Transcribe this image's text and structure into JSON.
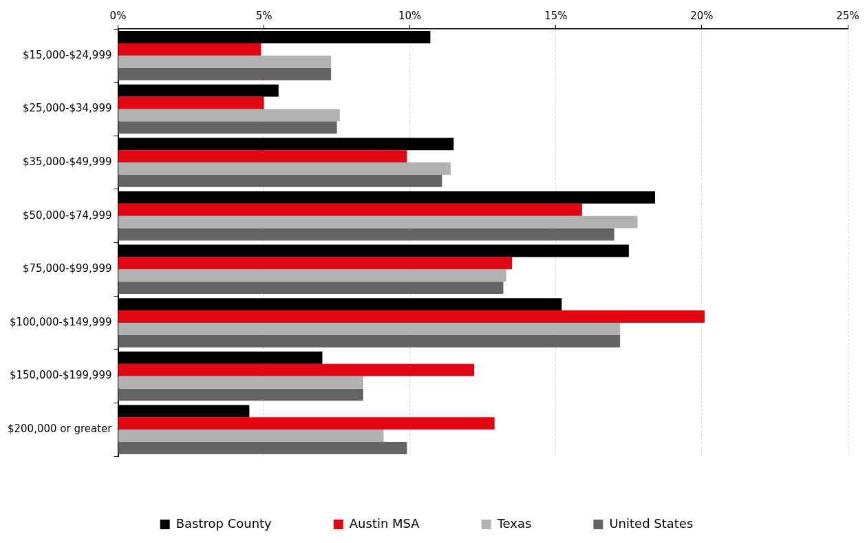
{
  "chart_data": {
    "type": "bar",
    "orientation": "horizontal",
    "categories": [
      "$15,000-$24,999",
      "$25,000-$34,999",
      "$35,000-$49,999",
      "$50,000-$74,999",
      "$75,000-$99,999",
      "$100,000-$149,999",
      "$150,000-$199,999",
      "$200,000 or greater"
    ],
    "series": [
      {
        "name": "Bastrop County",
        "color": "#000000",
        "values": [
          10.7,
          5.5,
          11.5,
          18.4,
          17.5,
          15.2,
          7.0,
          4.5
        ]
      },
      {
        "name": "Austin MSA",
        "color": "#e30613",
        "values": [
          4.9,
          5.0,
          9.9,
          15.9,
          13.5,
          20.1,
          12.2,
          12.9
        ]
      },
      {
        "name": "Texas",
        "color": "#b2b2b2",
        "values": [
          7.3,
          7.6,
          11.4,
          17.8,
          13.3,
          17.2,
          8.4,
          9.1
        ]
      },
      {
        "name": "United States",
        "color": "#636466",
        "values": [
          7.3,
          7.5,
          11.1,
          17.0,
          13.2,
          17.2,
          8.4,
          9.9
        ]
      }
    ],
    "xlim": [
      0,
      25
    ],
    "xticks": [
      {
        "value": 0,
        "label": "0%"
      },
      {
        "value": 5,
        "label": "5%"
      },
      {
        "value": 10,
        "label": "10%"
      },
      {
        "value": 15,
        "label": "15%"
      },
      {
        "value": 20,
        "label": "20%"
      },
      {
        "value": 25,
        "label": "25%"
      }
    ],
    "grid": "x",
    "legend": "bottom"
  }
}
